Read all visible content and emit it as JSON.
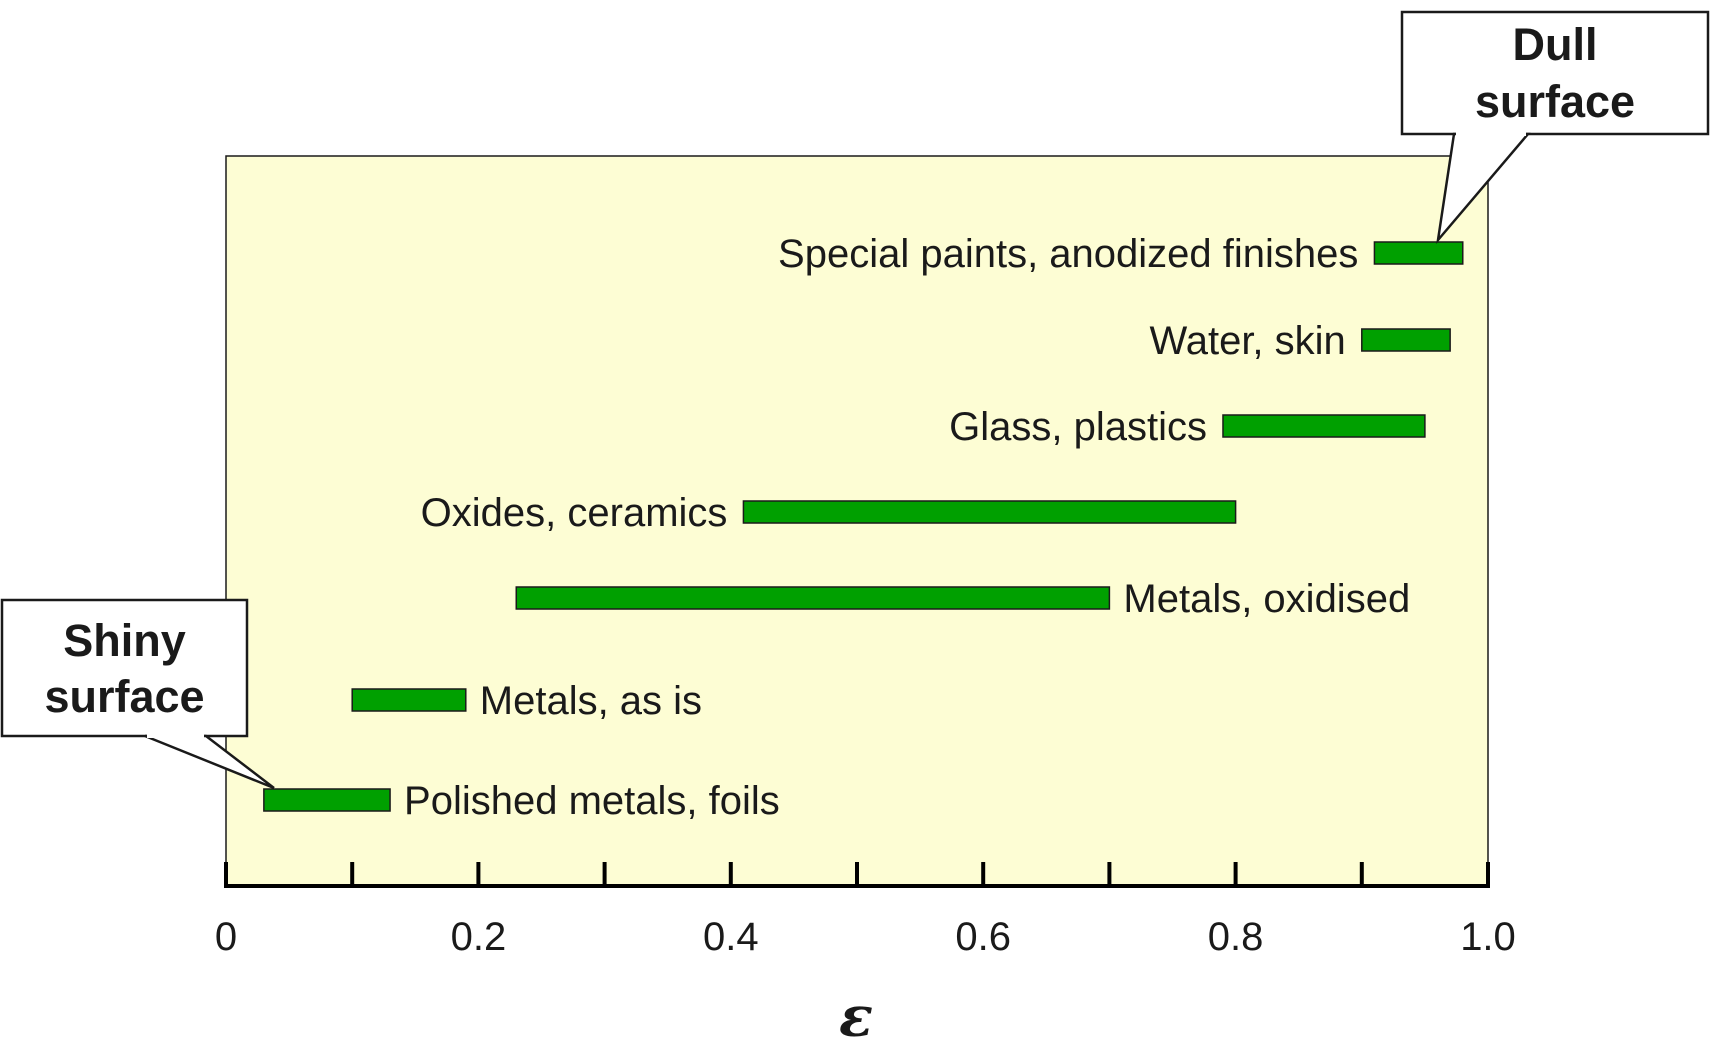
{
  "chart_data": {
    "type": "bar",
    "orientation": "horizontal-range",
    "title": "",
    "xlabel": "ε",
    "ylabel": "",
    "xlim": [
      0,
      1.0
    ],
    "x_ticks": [
      0,
      0.1,
      0.2,
      0.3,
      0.4,
      0.5,
      0.6,
      0.7,
      0.8,
      0.9,
      1.0
    ],
    "x_tick_labels": [
      {
        "value": 0,
        "label": "0"
      },
      {
        "value": 0.2,
        "label": "0.2"
      },
      {
        "value": 0.4,
        "label": "0.4"
      },
      {
        "value": 0.6,
        "label": "0.6"
      },
      {
        "value": 0.8,
        "label": "0.8"
      },
      {
        "value": 1.0,
        "label": "1.0"
      }
    ],
    "grid": false,
    "plot_background": "#fdfdd4",
    "bar_color": "#00a000",
    "series": [
      {
        "category": "Special paints, anodized finishes",
        "min": 0.91,
        "max": 0.98,
        "label_side": "left"
      },
      {
        "category": "Water, skin",
        "min": 0.9,
        "max": 0.97,
        "label_side": "left"
      },
      {
        "category": "Glass, plastics",
        "min": 0.79,
        "max": 0.95,
        "label_side": "left"
      },
      {
        "category": "Oxides, ceramics",
        "min": 0.41,
        "max": 0.8,
        "label_side": "left"
      },
      {
        "category": "Metals, oxidised",
        "min": 0.23,
        "max": 0.7,
        "label_side": "right"
      },
      {
        "category": "Metals, as is",
        "min": 0.1,
        "max": 0.19,
        "label_side": "right"
      },
      {
        "category": "Polished metals, foils",
        "min": 0.03,
        "max": 0.13,
        "label_side": "right"
      }
    ],
    "annotations": [
      {
        "name": "dull-surface",
        "lines": [
          "Dull",
          "surface"
        ],
        "points_to": "Special paints, anodized finishes"
      },
      {
        "name": "shiny-surface",
        "lines": [
          "Shiny",
          "surface"
        ],
        "points_to": "Polished metals, foils"
      }
    ]
  }
}
